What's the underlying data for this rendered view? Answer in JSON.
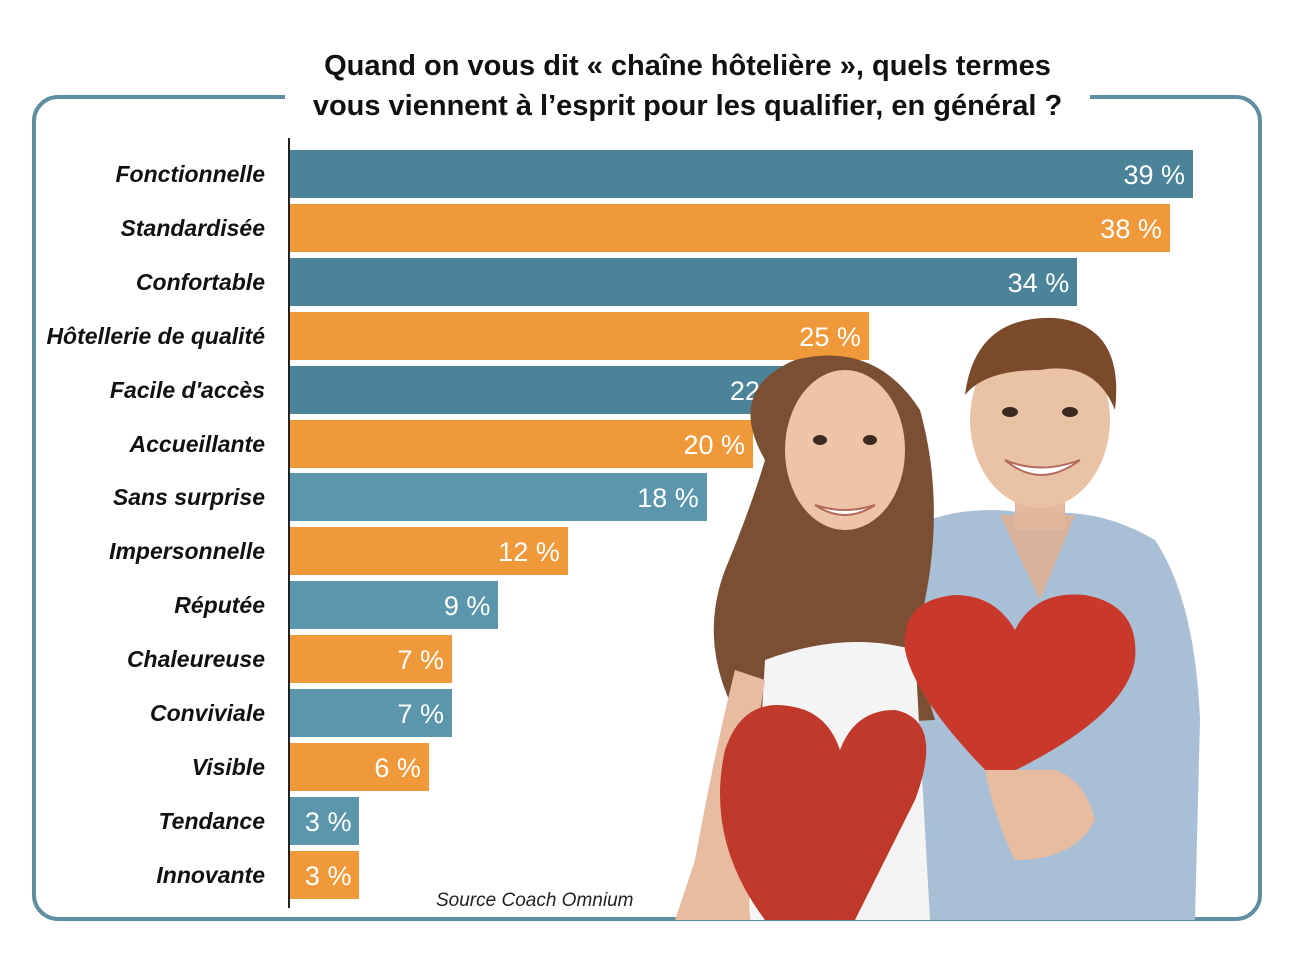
{
  "title_lines": [
    "Quand on vous dit «  chaîne hôtelière  », quels termes",
    "vous viennent à l’esprit pour les qualifier, en général ?"
  ],
  "source": "Source Coach Omnium",
  "colors": {
    "blue": "#4b8399",
    "blue_light": "#5b96ad",
    "orange": "#f0993a",
    "frame": "#5f8ea0"
  },
  "chart_data": {
    "type": "bar",
    "orientation": "horizontal",
    "title": "Quand on vous dit «  chaîne hôtelière  », quels termes vous viennent à l’esprit pour les qualifier, en général ?",
    "categories": [
      "Fonctionnelle",
      "Standardisée",
      "Confortable",
      "Hôtellerie de qualité",
      "Facile d'accès",
      "Accueillante",
      "Sans surprise",
      "Impersonnelle",
      "Réputée",
      "Chaleureuse",
      "Conviviale",
      "Visible",
      "Tendance",
      "Innovante"
    ],
    "values": [
      39,
      38,
      34,
      25,
      22,
      20,
      18,
      12,
      9,
      7,
      7,
      6,
      3,
      3
    ],
    "value_labels": [
      "39 %",
      "38 %",
      "34 %",
      "25 %",
      "22 %",
      "20 %",
      "18 %",
      "12 %",
      "9 %",
      "7 %",
      "7 %",
      "6 %",
      "3 %",
      "3 %"
    ],
    "unit": "%",
    "xlim": [
      0,
      39
    ],
    "grid": false,
    "legend": "none",
    "bar_colors": "alternating blue / orange"
  }
}
